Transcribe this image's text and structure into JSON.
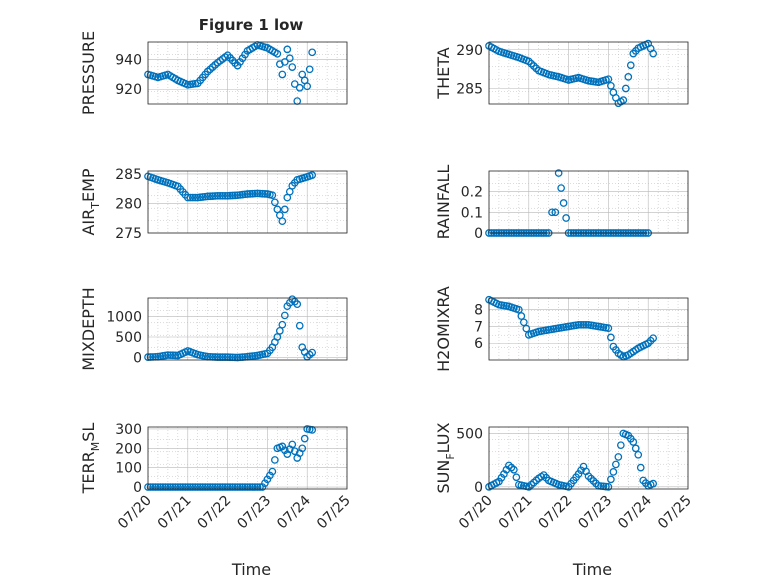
{
  "figure_title": "Figure 1 low",
  "colors": {
    "marker": "#0072BD",
    "axis": "#262626",
    "grid": "#b8b8b8",
    "bg": "#ffffff"
  },
  "chart_data": [
    {
      "type": "scatter",
      "name": "pressure",
      "title": "Figure 1 low",
      "ylabel": "PRESSURE",
      "yticks": [
        "920",
        "940"
      ],
      "ytick_values": [
        920,
        940
      ],
      "ylim": [
        910,
        952
      ],
      "x": [
        "07/20 00:00",
        "07/20 06:00",
        "07/20 12:00",
        "07/20 18:00",
        "07/21 00:00",
        "07/21 06:00",
        "07/21 12:00",
        "07/21 18:00",
        "07/22 00:00",
        "07/22 06:00",
        "07/22 12:00",
        "07/22 18:00",
        "07/23 00:00",
        "07/23 03:00",
        "07/23 06:00",
        "07/23 09:00",
        "07/23 12:00",
        "07/23 15:00",
        "07/23 18:00",
        "07/23 21:00",
        "07/24 00:00",
        "07/24 03:00"
      ],
      "y": [
        930,
        928,
        930,
        926,
        923,
        924,
        932,
        938,
        943,
        936,
        946,
        950,
        948,
        946,
        944,
        930,
        947,
        935,
        912,
        930,
        922,
        945
      ]
    },
    {
      "type": "scatter",
      "name": "theta",
      "ylabel": "THETA",
      "yticks": [
        "285",
        "290"
      ],
      "ytick_values": [
        285,
        290
      ],
      "ylim": [
        283,
        291
      ],
      "x": [
        "07/20 00:00",
        "07/20 06:00",
        "07/20 12:00",
        "07/20 18:00",
        "07/21 00:00",
        "07/21 06:00",
        "07/21 12:00",
        "07/21 18:00",
        "07/22 00:00",
        "07/22 06:00",
        "07/22 12:00",
        "07/22 18:00",
        "07/23 00:00",
        "07/23 03:00",
        "07/23 06:00",
        "07/23 09:00",
        "07/23 12:00",
        "07/23 15:00",
        "07/23 18:00",
        "07/24 00:00",
        "07/24 03:00"
      ],
      "y": [
        290.5,
        289.8,
        289.4,
        289,
        288.5,
        287.3,
        286.8,
        286.5,
        286.1,
        286.4,
        286.0,
        285.8,
        286.2,
        284.5,
        283.1,
        283.5,
        286.5,
        289.5,
        290.2,
        290.8,
        289.5
      ]
    },
    {
      "type": "scatter",
      "name": "air_temp",
      "ylabel": "AIR_TEMP",
      "ylabel_main": "AIR",
      "ylabel_sub": "T",
      "ylabel_rest": "EMP",
      "yticks": [
        "275",
        "280",
        "285"
      ],
      "ytick_values": [
        275,
        280,
        285
      ],
      "ylim": [
        275,
        285.5
      ],
      "x": [
        "07/20 00:00",
        "07/20 06:00",
        "07/20 12:00",
        "07/20 18:00",
        "07/21 00:00",
        "07/21 06:00",
        "07/21 12:00",
        "07/21 18:00",
        "07/22 00:00",
        "07/22 06:00",
        "07/22 12:00",
        "07/22 18:00",
        "07/23 00:00",
        "07/23 03:00",
        "07/23 06:00",
        "07/23 09:00",
        "07/23 12:00",
        "07/23 15:00",
        "07/23 18:00",
        "07/24 00:00",
        "07/24 03:00"
      ],
      "y": [
        284.6,
        284,
        283.5,
        282.9,
        281,
        281,
        281.2,
        281.3,
        281.3,
        281.4,
        281.6,
        281.7,
        281.6,
        281.4,
        279,
        277,
        281,
        283,
        284,
        284.5,
        284.8
      ]
    },
    {
      "type": "scatter",
      "name": "rainfall",
      "ylabel": "RAINFALL",
      "yticks": [
        "0",
        "0.1",
        "0.2"
      ],
      "ytick_values": [
        0,
        0.1,
        0.2
      ],
      "ylim": [
        0,
        0.3
      ],
      "x": [
        "07/20 00:00",
        "07/20 12:00",
        "07/21 00:00",
        "07/21 12:00",
        "07/21 14:00",
        "07/21 16:00",
        "07/21 18:00",
        "07/22 00:00",
        "07/22 12:00",
        "07/23 00:00",
        "07/23 12:00",
        "07/24 00:00"
      ],
      "y": [
        0,
        0,
        0,
        0,
        0.1,
        0.1,
        0.29,
        0,
        0,
        0,
        0,
        0
      ]
    },
    {
      "type": "scatter",
      "name": "mixdepth",
      "ylabel": "MIXDEPTH",
      "yticks": [
        "0",
        "500",
        "1000"
      ],
      "ytick_values": [
        0,
        500,
        1000
      ],
      "ylim": [
        -60,
        1450
      ],
      "x": [
        "07/20 00:00",
        "07/20 06:00",
        "07/20 12:00",
        "07/20 18:00",
        "07/21 00:00",
        "07/21 06:00",
        "07/21 12:00",
        "07/21 18:00",
        "07/22 00:00",
        "07/22 06:00",
        "07/22 12:00",
        "07/22 18:00",
        "07/23 00:00",
        "07/23 03:00",
        "07/23 06:00",
        "07/23 09:00",
        "07/23 12:00",
        "07/23 15:00",
        "07/23 18:00",
        "07/23 21:00",
        "07/24 00:00",
        "07/24 03:00"
      ],
      "y": [
        10,
        20,
        60,
        50,
        160,
        70,
        20,
        10,
        10,
        0,
        20,
        50,
        100,
        250,
        500,
        800,
        1250,
        1420,
        1300,
        250,
        20,
        120
      ]
    },
    {
      "type": "scatter",
      "name": "h2omixra",
      "ylabel": "H2OMIXRA",
      "yticks": [
        "6",
        "7",
        "8"
      ],
      "ytick_values": [
        6,
        7,
        8
      ],
      "ylim": [
        5,
        8.7
      ],
      "x": [
        "07/20 00:00",
        "07/20 06:00",
        "07/20 12:00",
        "07/20 18:00",
        "07/21 00:00",
        "07/21 06:00",
        "07/21 12:00",
        "07/21 18:00",
        "07/22 00:00",
        "07/22 06:00",
        "07/22 12:00",
        "07/22 18:00",
        "07/23 00:00",
        "07/23 03:00",
        "07/23 06:00",
        "07/23 09:00",
        "07/23 12:00",
        "07/23 15:00",
        "07/23 18:00",
        "07/24 00:00",
        "07/24 03:00"
      ],
      "y": [
        8.6,
        8.3,
        8.2,
        8.0,
        6.5,
        6.7,
        6.8,
        6.9,
        7.0,
        7.1,
        7.1,
        7.0,
        6.9,
        5.8,
        5.4,
        5.2,
        5.3,
        5.5,
        5.7,
        6.0,
        6.3
      ]
    },
    {
      "type": "scatter",
      "name": "terr_msl",
      "ylabel": "TERR_MSL",
      "ylabel_main": "TERR",
      "ylabel_sub": "M",
      "ylabel_rest": "SL",
      "yticks": [
        "0",
        "100",
        "200",
        "300"
      ],
      "ytick_values": [
        0,
        100,
        200,
        300
      ],
      "ylim": [
        -10,
        310
      ],
      "x": [
        "07/20 00:00",
        "07/20 12:00",
        "07/21 00:00",
        "07/21 12:00",
        "07/22 00:00",
        "07/22 12:00",
        "07/22 21:00",
        "07/23 00:00",
        "07/23 03:00",
        "07/23 06:00",
        "07/23 09:00",
        "07/23 12:00",
        "07/23 15:00",
        "07/23 18:00",
        "07/23 21:00",
        "07/24 00:00",
        "07/24 03:00"
      ],
      "y": [
        0,
        0,
        0,
        0,
        0,
        0,
        0,
        40,
        80,
        200,
        210,
        170,
        220,
        150,
        200,
        300,
        295
      ],
      "xlabel": "Time",
      "xticks": [
        "07/20",
        "07/21",
        "07/22",
        "07/23",
        "07/24",
        "07/25"
      ]
    },
    {
      "type": "scatter",
      "name": "sun_flux",
      "ylabel": "SUN_FLUX",
      "ylabel_main": "SUN",
      "ylabel_sub": "F",
      "ylabel_rest": "LUX",
      "yticks": [
        "0",
        "500"
      ],
      "ytick_values": [
        0,
        500
      ],
      "ylim": [
        -20,
        560
      ],
      "x": [
        "07/20 00:00",
        "07/20 06:00",
        "07/20 09:00",
        "07/20 12:00",
        "07/20 15:00",
        "07/20 18:00",
        "07/21 00:00",
        "07/21 06:00",
        "07/21 09:00",
        "07/21 12:00",
        "07/21 18:00",
        "07/22 00:00",
        "07/22 06:00",
        "07/22 09:00",
        "07/22 12:00",
        "07/22 18:00",
        "07/23 00:00",
        "07/23 06:00",
        "07/23 09:00",
        "07/23 12:00",
        "07/23 15:00",
        "07/23 18:00",
        "07/23 21:00",
        "07/24 00:00",
        "07/24 03:00"
      ],
      "y": [
        0,
        50,
        120,
        200,
        160,
        20,
        0,
        80,
        110,
        60,
        20,
        0,
        120,
        190,
        100,
        10,
        0,
        280,
        500,
        480,
        420,
        300,
        60,
        10,
        30
      ],
      "xlabel": "Time",
      "xticks": [
        "07/20",
        "07/21",
        "07/22",
        "07/23",
        "07/24",
        "07/25"
      ]
    }
  ]
}
